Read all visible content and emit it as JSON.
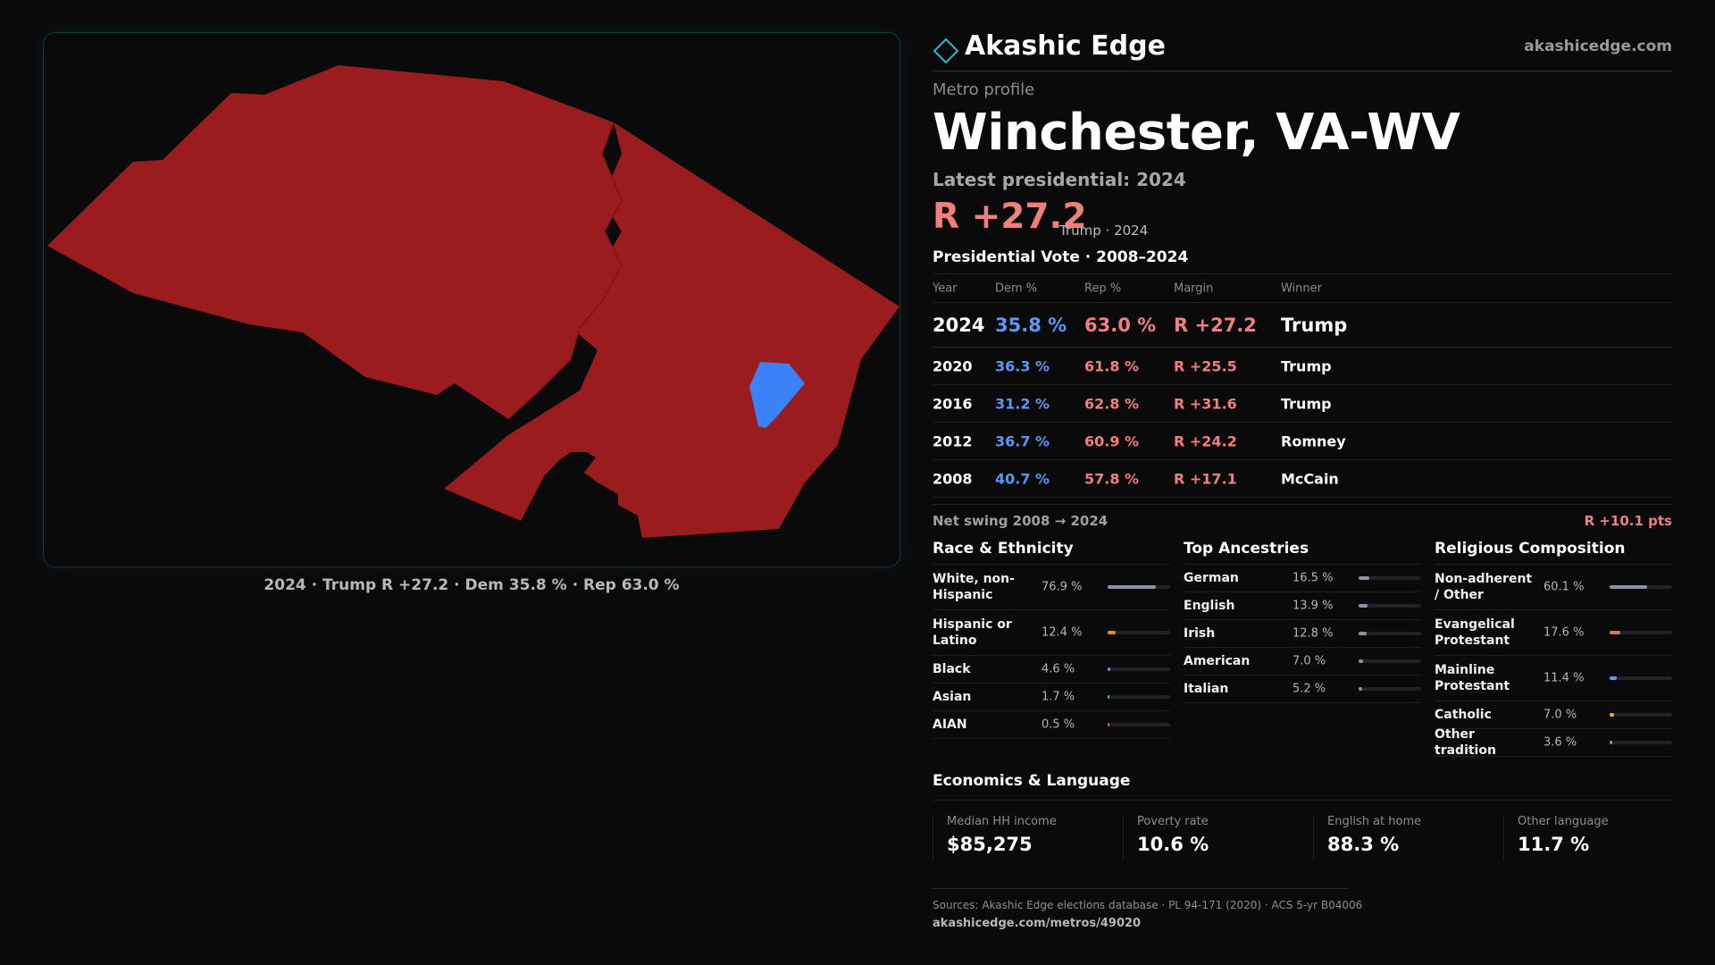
{
  "brand": {
    "name": "Akashic Edge",
    "url": "akashicedge.com",
    "icon": "diamond-outline-icon",
    "accent": "#2fb8c4"
  },
  "profile": {
    "eyebrow": "Metro profile",
    "name": "Winchester, VA-WV",
    "latest_label": "Latest presidential: 2024",
    "latest_margin": "R +27.2",
    "latest_sub": "Trump · 2024"
  },
  "map": {
    "caption": "2024 · Trump R +27.2 · Dem 35.8 % · Rep 63.0 %",
    "colors": {
      "rep": "#9b1c1f",
      "dem": "#3b82f6",
      "background": "#0a0a0b"
    }
  },
  "vote_table": {
    "title": "Presidential Vote · 2008–2024",
    "headers": {
      "year": "Year",
      "dem": "Dem %",
      "rep": "Rep %",
      "margin": "Margin",
      "winner": "Winner"
    },
    "rows": [
      {
        "year": "2024",
        "dem": "35.8 %",
        "rep": "63.0 %",
        "margin": "R +27.2",
        "winner": "Trump"
      },
      {
        "year": "2020",
        "dem": "36.3 %",
        "rep": "61.8 %",
        "margin": "R +25.5",
        "winner": "Trump"
      },
      {
        "year": "2016",
        "dem": "31.2 %",
        "rep": "62.8 %",
        "margin": "R +31.6",
        "winner": "Trump"
      },
      {
        "year": "2012",
        "dem": "36.7 %",
        "rep": "60.9 %",
        "margin": "R +24.2",
        "winner": "Romney"
      },
      {
        "year": "2008",
        "dem": "40.7 %",
        "rep": "57.8 %",
        "margin": "R +17.1",
        "winner": "McCain"
      }
    ],
    "swing_label": "Net swing 2008 → 2024",
    "swing_value": "R +10.1 pts"
  },
  "race": {
    "title": "Race & Ethnicity",
    "items": [
      {
        "label": "White, non-Hispanic",
        "pct": "76.9 %",
        "value": 76.9,
        "color": "#8a94a6"
      },
      {
        "label": "Hispanic or Latino",
        "pct": "12.4 %",
        "value": 12.4,
        "color": "#e8922e"
      },
      {
        "label": "Black",
        "pct": "4.6 %",
        "value": 4.6,
        "color": "#8b7cf6"
      },
      {
        "label": "Asian",
        "pct": "1.7 %",
        "value": 1.7,
        "color": "#2fbfa0"
      },
      {
        "label": "AIAN",
        "pct": "0.5 %",
        "value": 0.5,
        "color": "#e0603a"
      }
    ]
  },
  "ancestry": {
    "title": "Top Ancestries",
    "items": [
      {
        "label": "German",
        "pct": "16.5 %",
        "value": 16.5,
        "color": "#8a94a6"
      },
      {
        "label": "English",
        "pct": "13.9 %",
        "value": 13.9,
        "color": "#8a94a6"
      },
      {
        "label": "Irish",
        "pct": "12.8 %",
        "value": 12.8,
        "color": "#8a94a6"
      },
      {
        "label": "American",
        "pct": "7.0 %",
        "value": 7.0,
        "color": "#8a94a6"
      },
      {
        "label": "Italian",
        "pct": "5.2 %",
        "value": 5.2,
        "color": "#8a94a6"
      }
    ]
  },
  "religion": {
    "title": "Religious Composition",
    "items": [
      {
        "label": "Non-adherent / Other",
        "pct": "60.1 %",
        "value": 60.1,
        "color": "#8a94a6"
      },
      {
        "label": "Evangelical Protestant",
        "pct": "17.6 %",
        "value": 17.6,
        "color": "#e86b6b"
      },
      {
        "label": "Mainline Protestant",
        "pct": "11.4 %",
        "value": 11.4,
        "color": "#5e96f2"
      },
      {
        "label": "Catholic",
        "pct": "7.0 %",
        "value": 7.0,
        "color": "#e6b33a"
      },
      {
        "label": "Other tradition",
        "pct": "3.6 %",
        "value": 3.6,
        "color": "#8a94a6"
      }
    ]
  },
  "economics": {
    "title": "Economics & Language",
    "items": [
      {
        "label": "Median HH income",
        "value": "$85,275"
      },
      {
        "label": "Poverty rate",
        "value": "10.6 %"
      },
      {
        "label": "English at home",
        "value": "88.3 %"
      },
      {
        "label": "Other language",
        "value": "11.7 %"
      }
    ]
  },
  "footer": {
    "sources": "Sources: Akashic Edge elections database · PL 94-171 (2020) · ACS 5-yr B04006",
    "url": "akashicedge.com/metros/49020"
  }
}
